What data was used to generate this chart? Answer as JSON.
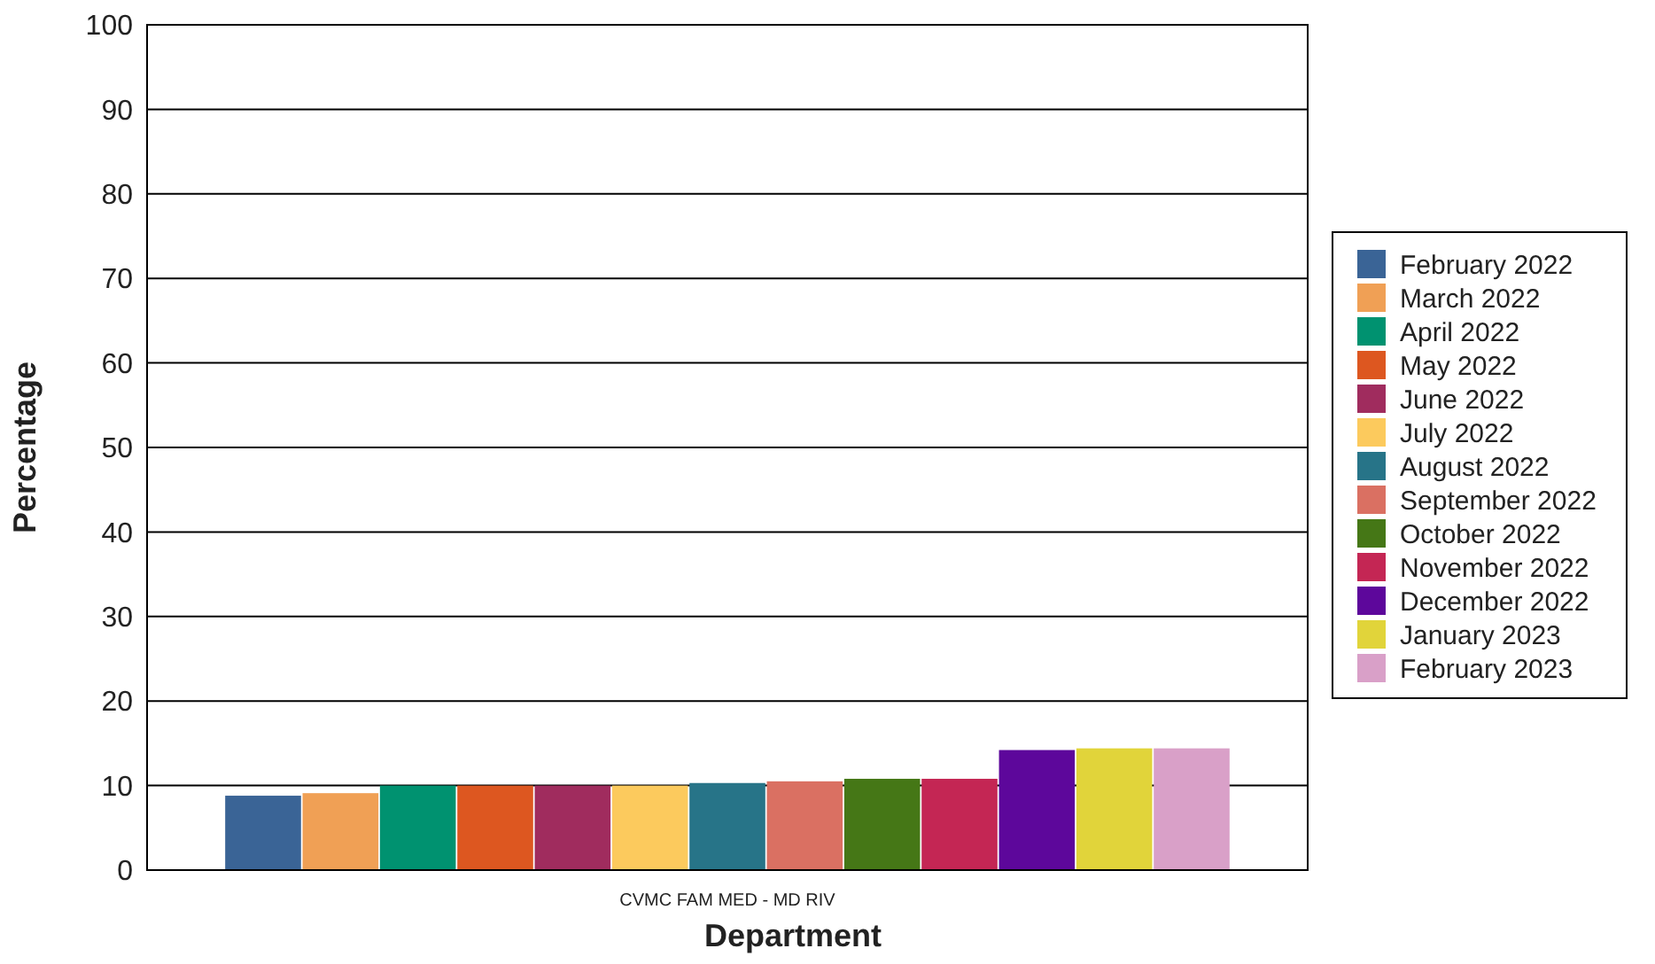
{
  "chart_data": {
    "type": "bar",
    "xlabel": "Department",
    "ylabel": "Percentage",
    "categories": [
      "CVMC FAM MED - MD RIV"
    ],
    "ylim": [
      0,
      100
    ],
    "yticks": [
      0,
      10,
      20,
      30,
      40,
      50,
      60,
      70,
      80,
      90,
      100
    ],
    "grid": "y",
    "legend": "right",
    "series": [
      {
        "name": "February 2022",
        "color": "#3a6496",
        "values": [
          8.8
        ]
      },
      {
        "name": "March 2022",
        "color": "#f0a055",
        "values": [
          9.1
        ]
      },
      {
        "name": "April 2022",
        "color": "#009270",
        "values": [
          10.0
        ]
      },
      {
        "name": "May 2022",
        "color": "#dd5720",
        "values": [
          10.0
        ]
      },
      {
        "name": "June 2022",
        "color": "#a02c5e",
        "values": [
          10.0
        ]
      },
      {
        "name": "July 2022",
        "color": "#fcca5d",
        "values": [
          10.0
        ]
      },
      {
        "name": "August 2022",
        "color": "#277488",
        "values": [
          10.3
        ]
      },
      {
        "name": "September 2022",
        "color": "#da7062",
        "values": [
          10.5
        ]
      },
      {
        "name": "October 2022",
        "color": "#457716",
        "values": [
          10.8
        ]
      },
      {
        "name": "November 2022",
        "color": "#c42654",
        "values": [
          10.8
        ]
      },
      {
        "name": "December 2022",
        "color": "#5d079b",
        "values": [
          14.2
        ]
      },
      {
        "name": "January 2023",
        "color": "#e1d43a",
        "values": [
          14.4
        ]
      },
      {
        "name": "February 2023",
        "color": "#d9a0c8",
        "values": [
          14.4
        ]
      }
    ]
  }
}
